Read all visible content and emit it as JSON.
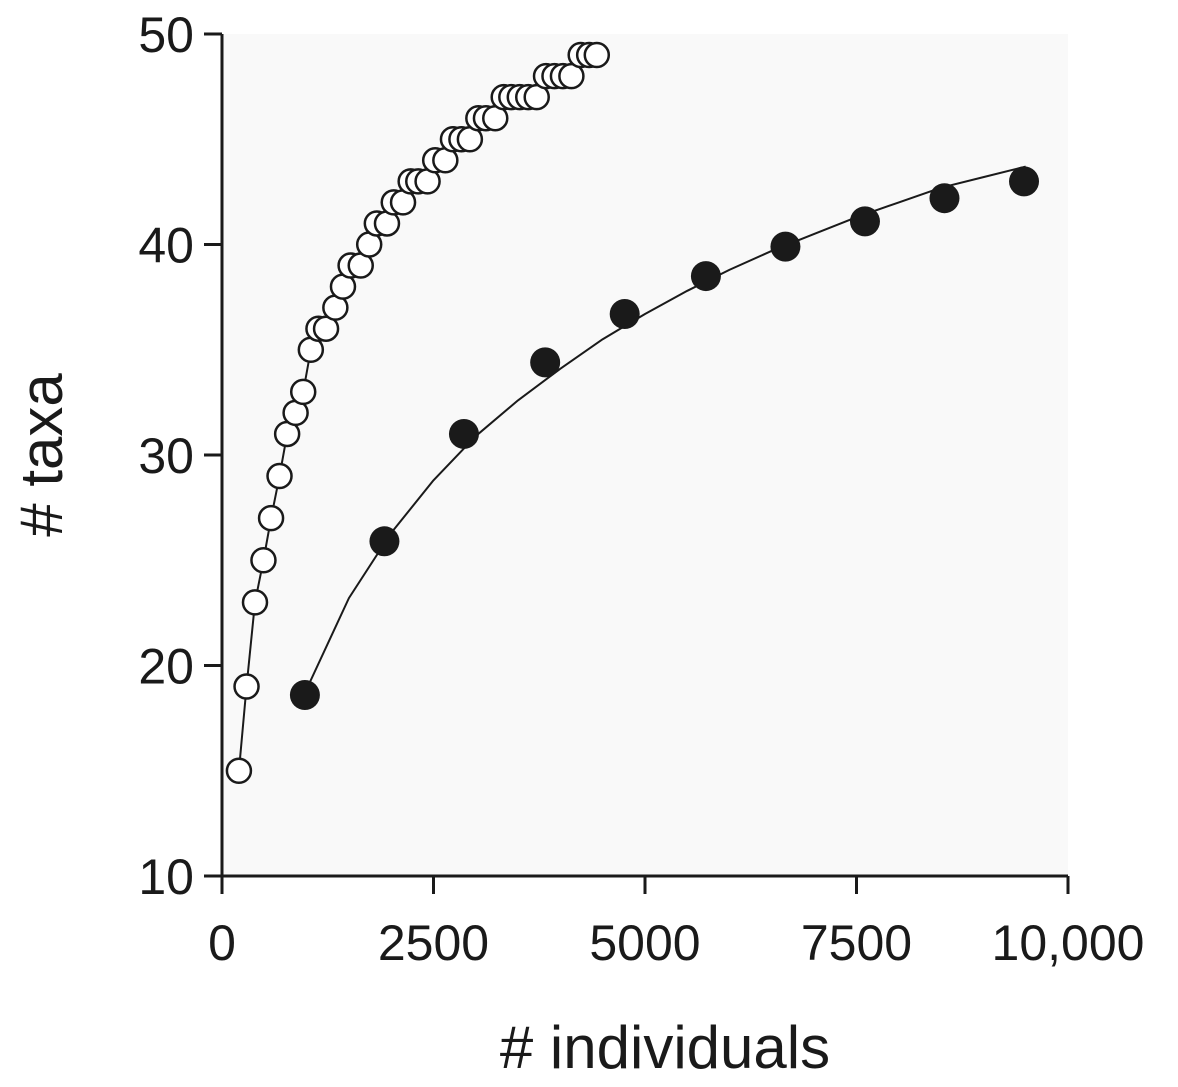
{
  "chart_data": {
    "type": "scatter",
    "title": "",
    "xlabel": "# individuals",
    "ylabel": "# taxa",
    "xlim": [
      0,
      10000
    ],
    "ylim": [
      10,
      50
    ],
    "x_ticks": [
      0,
      2500,
      5000,
      7500,
      10000
    ],
    "x_tick_labels": [
      "0",
      "2500",
      "5000",
      "7500",
      "10,000"
    ],
    "y_ticks": [
      10,
      20,
      30,
      40,
      50
    ],
    "y_tick_labels": [
      "10",
      "20",
      "30",
      "40",
      "50"
    ],
    "grid": false,
    "legend": "none",
    "series": [
      {
        "marker": "open-circle",
        "color": "#ffffff",
        "stroke": "#1a1a1a",
        "line": true,
        "x": [
          200,
          290,
          390,
          490,
          580,
          680,
          770,
          870,
          960,
          1050,
          1140,
          1230,
          1340,
          1430,
          1520,
          1640,
          1740,
          1830,
          1950,
          2030,
          2140,
          2230,
          2320,
          2430,
          2520,
          2640,
          2730,
          2830,
          2930,
          3030,
          3120,
          3230,
          3330,
          3420,
          3520,
          3620,
          3720,
          3830,
          3930,
          4030,
          4130,
          4240,
          4340,
          4430
        ],
        "y": [
          15,
          19,
          23,
          25,
          27,
          29,
          31,
          32,
          33,
          35,
          36,
          36,
          37,
          38,
          39,
          39,
          40,
          41,
          41,
          42,
          42,
          43,
          43,
          43,
          44,
          44,
          45,
          45,
          45,
          46,
          46,
          46,
          47,
          47,
          47,
          47,
          47,
          48,
          48,
          48,
          48,
          49,
          49,
          49
        ]
      },
      {
        "marker": "filled-circle",
        "color": "#1a1a1a",
        "line": false,
        "x": [
          980,
          1920,
          2860,
          3820,
          4760,
          5720,
          6660,
          7600,
          8540,
          9480
        ],
        "y": [
          18.6,
          25.9,
          31.0,
          34.4,
          36.7,
          38.5,
          39.9,
          41.1,
          42.2,
          43.0
        ]
      }
    ],
    "fit_curve": {
      "series_index": 1,
      "style": "thin-black-line",
      "x": [
        980,
        1500,
        2000,
        2500,
        3000,
        3500,
        4000,
        4500,
        5000,
        5500,
        6000,
        6500,
        7000,
        7500,
        8000,
        8500,
        9000,
        9500
      ],
      "y": [
        18.7,
        23.2,
        26.3,
        28.8,
        30.9,
        32.6,
        34.1,
        35.5,
        36.7,
        37.8,
        38.8,
        39.7,
        40.5,
        41.3,
        42.0,
        42.7,
        43.2,
        43.7
      ]
    }
  }
}
